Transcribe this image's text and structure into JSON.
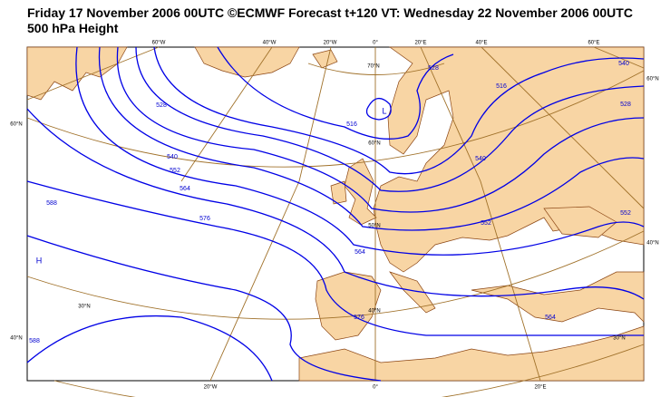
{
  "header": {
    "title": "Friday 17 November 2006 00UTC ©ECMWF Forecast t+120 VT: Wednesday 22 November 2006 00UTC",
    "subtitle": "500 hPa Height"
  },
  "map": {
    "graticule_labels": [
      "60°W",
      "40°W",
      "20°W",
      "0°",
      "20°E",
      "40°E",
      "60°E",
      "60°N",
      "60°N",
      "40°N",
      "40°N",
      "70°N",
      "60°N",
      "50°N",
      "40°N",
      "30°N",
      "30°N",
      "20°W",
      "0°",
      "20°E"
    ],
    "contour_labels": [
      "516",
      "528",
      "540",
      "552",
      "564",
      "576",
      "588",
      "588",
      "576",
      "564",
      "552",
      "540",
      "528",
      "516",
      "528",
      "540",
      "552",
      "564"
    ],
    "pressure_centers": [
      "L",
      "H"
    ]
  }
}
